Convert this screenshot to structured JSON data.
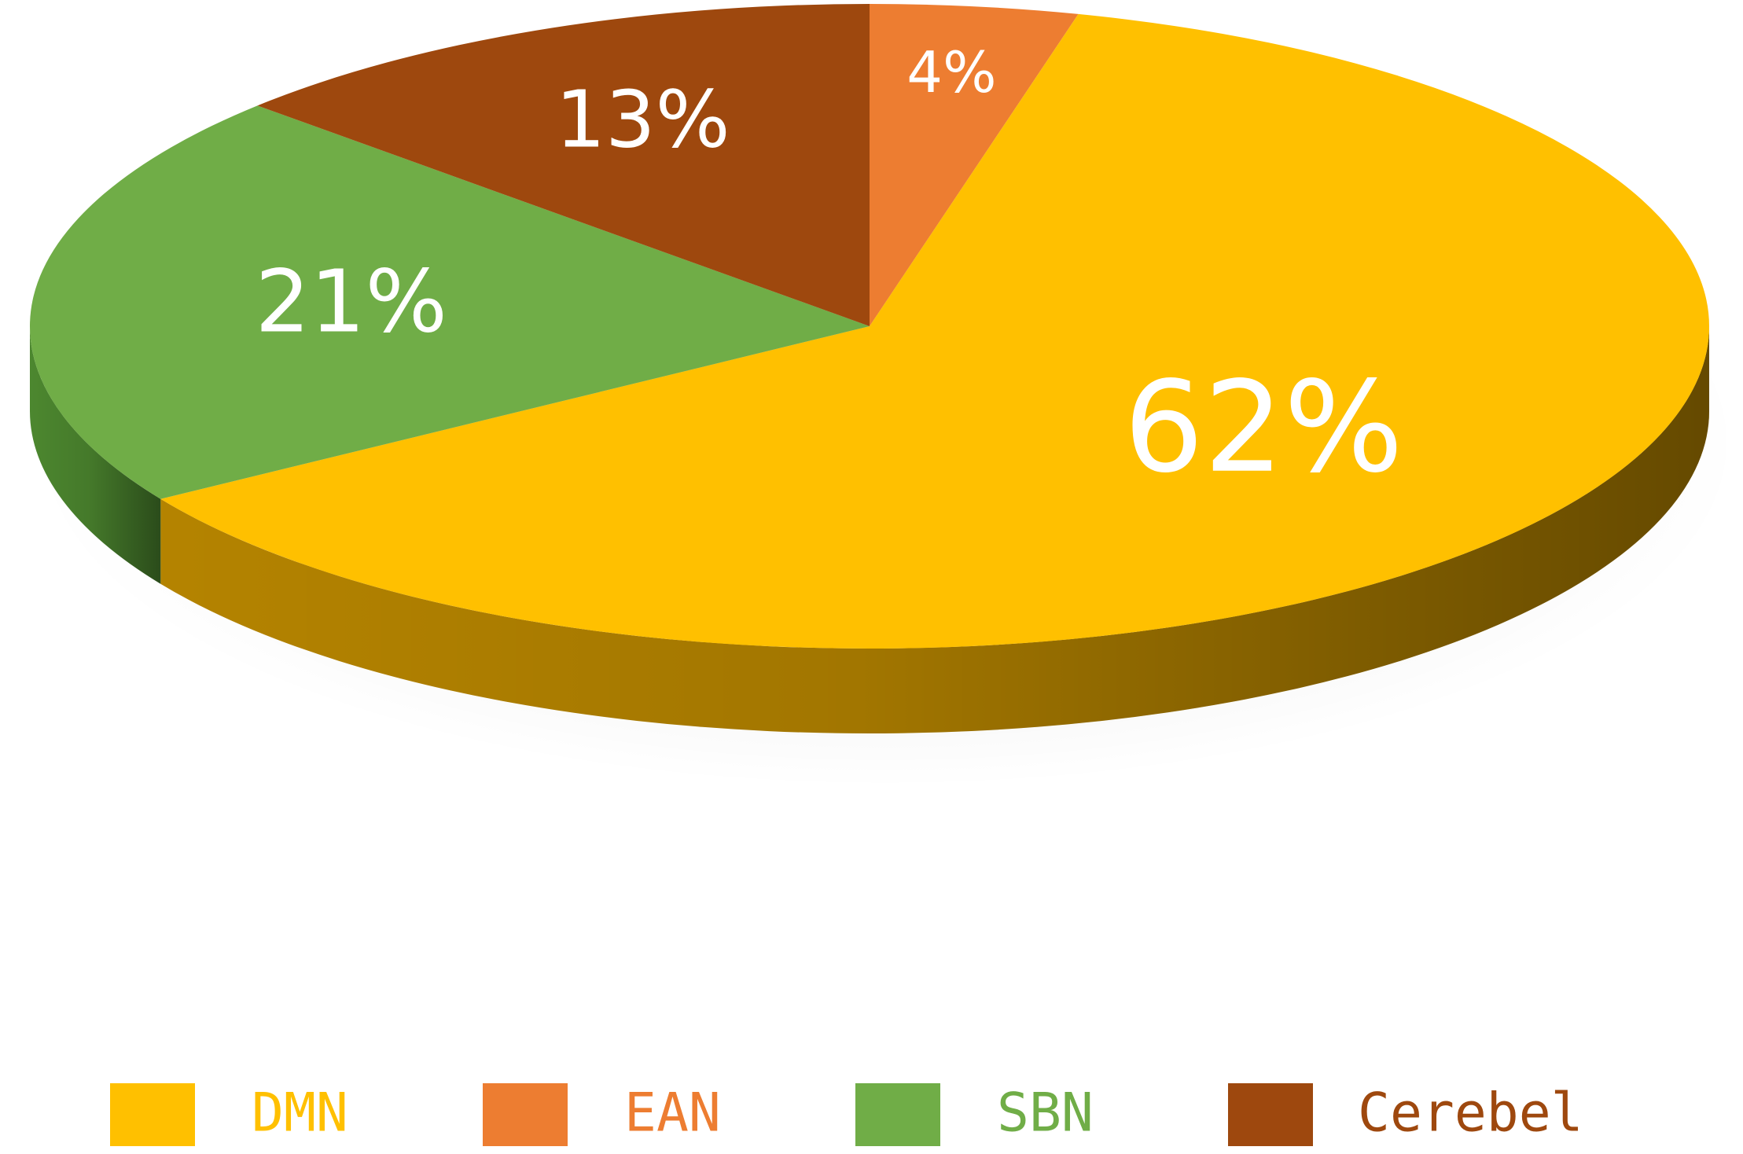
{
  "chart_data": {
    "type": "pie",
    "style": "3d",
    "slices": [
      {
        "name": "DMN",
        "value": 62,
        "label": "62%",
        "color": "#FFC000",
        "side_color": "#B88600"
      },
      {
        "name": "EAN",
        "value": 4,
        "label": "4%",
        "color": "#ED7D31",
        "side_color": "#B05A1E"
      },
      {
        "name": "SBN",
        "value": 21,
        "label": "21%",
        "color": "#70AD47",
        "side_color": "#4E8A30"
      },
      {
        "name": "Cerebel",
        "value": 13,
        "label": "13%",
        "color": "#9E480E",
        "side_color": "#6E2F07"
      }
    ],
    "legend": {
      "position": "bottom",
      "items": [
        {
          "name": "DMN",
          "color": "#FFC000",
          "text_color": "#FFC000"
        },
        {
          "name": "EAN",
          "color": "#ED7D31",
          "text_color": "#ED7D31"
        },
        {
          "name": "SBN",
          "color": "#70AD47",
          "text_color": "#70AD47"
        },
        {
          "name": "Cerebel",
          "color": "#9E480E",
          "text_color": "#9E480E"
        }
      ]
    }
  }
}
